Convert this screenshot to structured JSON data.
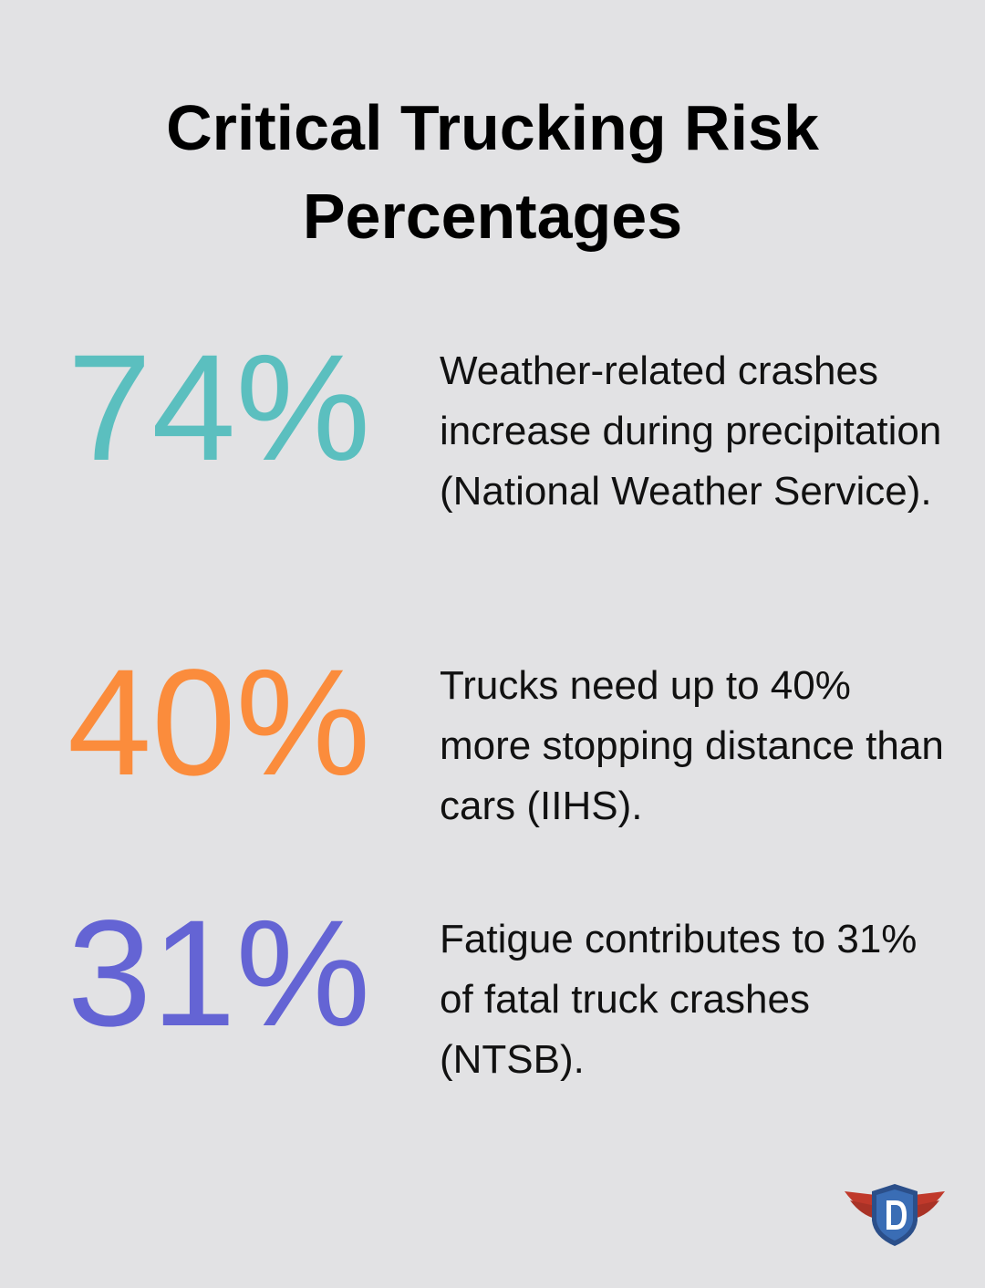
{
  "header": {
    "title": "Critical Trucking Risk Percentages"
  },
  "stats": [
    {
      "value": "74%",
      "color": "#5bbfbf",
      "description": "Weather-related crashes increase during precipitation (National Weather Service)."
    },
    {
      "value": "40%",
      "color": "#fb8c3c",
      "description": "Trucks need up to 40% more stopping distance than cars (IIHS)."
    },
    {
      "value": "31%",
      "color": "#6464d4",
      "description": "Fatigue contributes to 31% of fatal truck crashes (NTSB)."
    }
  ]
}
